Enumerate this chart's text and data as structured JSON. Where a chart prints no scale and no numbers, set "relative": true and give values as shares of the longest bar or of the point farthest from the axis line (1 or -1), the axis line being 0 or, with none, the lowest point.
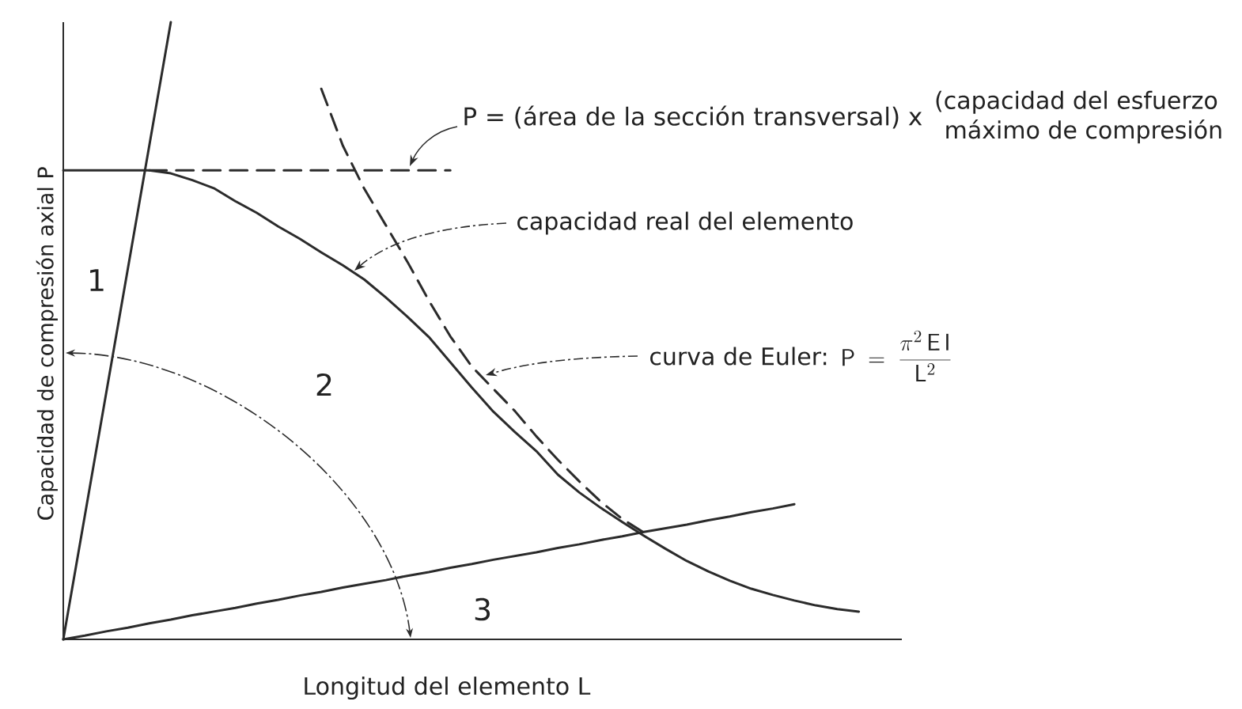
{
  "chart_data": {
    "type": "line",
    "relative": true,
    "xlabel": "Longitud del elemento L",
    "ylabel": "Capacidad de compresión axial P",
    "categories": [
      null,
      null,
      null,
      null,
      null,
      null,
      null,
      null,
      null,
      null,
      null,
      null,
      null,
      null,
      null,
      null,
      null,
      null,
      null,
      null,
      null,
      null,
      null,
      null,
      null,
      null,
      null,
      null,
      null,
      null,
      null,
      null,
      null,
      null,
      null,
      null,
      null,
      null,
      null,
      null
    ],
    "series": [
      {
        "color": "#2b2b2b",
        "line_style": "solid",
        "values": [
          0,
          0.2,
          0.4,
          0.6,
          0.8,
          1.0,
          null,
          null,
          null,
          null,
          null,
          null,
          null,
          null,
          null,
          null,
          null,
          null,
          null,
          null,
          null,
          null,
          null,
          null,
          null,
          null,
          null,
          null,
          null,
          null,
          null,
          null,
          null,
          null,
          null,
          null,
          null,
          null,
          null,
          null
        ]
      },
      {
        "color": "#2b2b2b",
        "line_style": "dashed",
        "values": [
          null,
          null,
          null,
          null,
          0.76,
          0.76,
          0.76,
          0.76,
          0.76,
          0.76,
          0.76,
          0.76,
          0.76,
          0.76,
          0.76,
          0.76,
          0.76,
          0.76,
          0.76,
          null,
          null,
          null,
          null,
          null,
          null,
          null,
          null,
          null,
          null,
          null,
          null,
          null,
          null,
          null,
          null,
          null,
          null,
          null,
          null,
          null
        ]
      },
      {
        "color": "#2b2b2b",
        "line_style": "solid",
        "values": [
          0.76,
          0.76,
          0.76,
          0.76,
          0.76,
          0.755,
          0.744,
          0.731,
          0.71,
          0.691,
          0.669,
          0.649,
          0.627,
          0.606,
          0.583,
          0.554,
          0.523,
          0.49,
          0.449,
          0.408,
          0.369,
          0.336,
          0.305,
          0.267,
          0.238,
          0.213,
          0.19,
          0.168,
          0.147,
          0.127,
          0.11,
          0.095,
          0.082,
          0.072,
          0.063,
          0.055,
          0.049,
          0.045,
          null,
          null
        ]
      },
      {
        "color": "#2b2b2b",
        "line_style": "dashed",
        "values": [
          null,
          null,
          null,
          null,
          null,
          null,
          null,
          null,
          null,
          null,
          null,
          null,
          0.892,
          0.8,
          0.73,
          0.671,
          0.612,
          0.549,
          0.491,
          0.442,
          0.406,
          0.37,
          0.329,
          0.291,
          0.256,
          0.223,
          0.195,
          0.173,
          null,
          null,
          null,
          null,
          null,
          null,
          null,
          null,
          null,
          null,
          null,
          null
        ]
      },
      {
        "color": "#2b2b2b",
        "line_style": "solid",
        "values": [
          0,
          0.006,
          0.013,
          0.019,
          0.026,
          0.032,
          0.039,
          0.045,
          0.051,
          0.058,
          0.064,
          0.071,
          0.077,
          0.084,
          0.09,
          0.096,
          0.103,
          0.109,
          0.116,
          0.122,
          0.129,
          0.135,
          0.141,
          0.148,
          0.154,
          0.161,
          0.167,
          0.174,
          0.18,
          0.186,
          0.193,
          0.199,
          0.206,
          0.212,
          0.219,
          null,
          null,
          null,
          null,
          null
        ]
      }
    ],
    "annotations": [
      "P = (área de la sección transversal) x",
      "(capacidad del esfuerzo máximo de compresión",
      "capacidad real del elemento",
      "curva de Euler:",
      "\\mathsf{P}\\;=\\;\\frac{\\pi^{2}\\,\\mathsf{E\\,I}}{\\mathsf{L}^{2}}",
      "1",
      "2",
      "3"
    ]
  }
}
